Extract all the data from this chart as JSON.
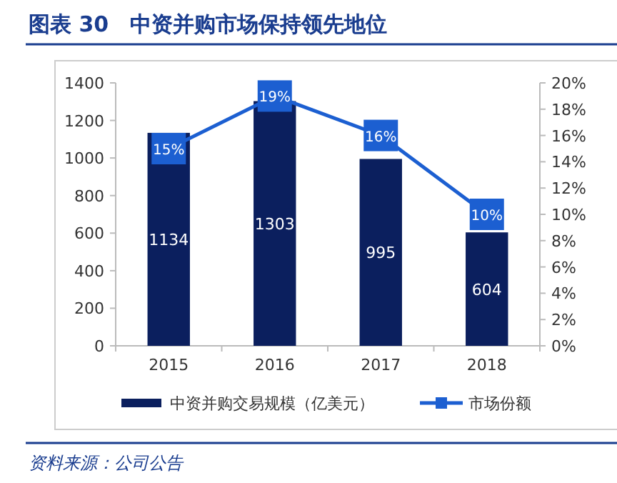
{
  "chart_data": {
    "type": "bar",
    "title": "图表 30　中资并购市场保持领先地位",
    "categories": [
      "2015",
      "2016",
      "2017",
      "2018"
    ],
    "series": [
      {
        "name": "中资并购交易规模（亿美元）",
        "color": "#0b1f5e",
        "values": [
          1134,
          1303,
          995,
          604
        ]
      },
      {
        "name": "市场份额",
        "type": "line",
        "axis": "y2",
        "color": "#1c5fd1",
        "marker": "square",
        "values": [
          15,
          19,
          16,
          10
        ],
        "value_labels": [
          "15%",
          "19%",
          "16%",
          "10%"
        ]
      }
    ],
    "ylim": [
      0,
      1400
    ],
    "yticks": [
      0,
      200,
      400,
      600,
      800,
      1000,
      1200,
      1400
    ],
    "y2lim": [
      0,
      20
    ],
    "y2ticks": [
      {
        "value": 0,
        "label": "0%"
      },
      {
        "value": 2,
        "label": "2%"
      },
      {
        "value": 4,
        "label": "4%"
      },
      {
        "value": 6,
        "label": "6%"
      },
      {
        "value": 8,
        "label": "8%"
      },
      {
        "value": 10,
        "label": "10%"
      },
      {
        "value": 12,
        "label": "12%"
      },
      {
        "value": 14,
        "label": "14%"
      },
      {
        "value": 16,
        "label": "16%"
      },
      {
        "value": 18,
        "label": "18%"
      },
      {
        "value": 20,
        "label": "20%"
      }
    ],
    "data_labels": true,
    "legend": "bottom",
    "grid": false,
    "annotations": [
      "资料来源：公司公告"
    ]
  }
}
